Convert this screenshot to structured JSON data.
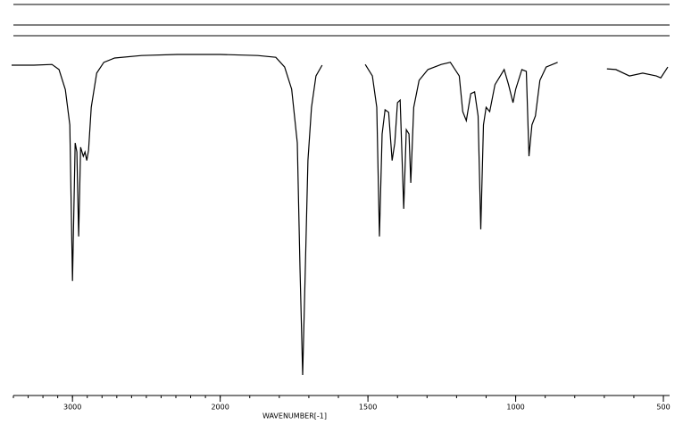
{
  "chart_data": {
    "type": "line",
    "x_label": "WAVENUMBER[-1]",
    "xlim": [
      3400,
      485
    ],
    "ylim": [
      0,
      100
    ],
    "scale_break": 2000,
    "scale_ratio": 2,
    "minor_tick_step": 100,
    "xticks": [
      3000,
      2000,
      1500,
      1000,
      500
    ],
    "series": [
      {
        "color": "#000000",
        "x": [
          3412,
          3261,
          3139,
          3091,
          3048,
          3018,
          3000,
          2982,
          2970,
          2958,
          2945,
          2927,
          2915,
          2903,
          2891,
          2873,
          2836,
          2788,
          2715,
          2533,
          2291,
          2000,
          1873,
          1812,
          1782,
          1758,
          1739,
          1730,
          1721,
          1712,
          1703,
          1691,
          1676,
          1655,
          1580,
          1509,
          1485,
          1470,
          1461,
          1452,
          1442,
          1430,
          1418,
          1409,
          1400,
          1391,
          1379,
          1370,
          1361,
          1355,
          1345,
          1327,
          1297,
          1252,
          1221,
          1191,
          1179,
          1167,
          1152,
          1139,
          1127,
          1118,
          1109,
          1100,
          1088,
          1070,
          1039,
          1024,
          1009,
          1000,
          979,
          964,
          955,
          945,
          933,
          918,
          897,
          858,
          780,
          691,
          661,
          615,
          570,
          524,
          509,
          485
        ],
        "values": [
          91.8,
          91.8,
          92,
          90.6,
          85,
          75.2,
          31.8,
          70.2,
          67.7,
          44.2,
          69,
          66.5,
          67.7,
          65.3,
          68.2,
          80.1,
          89.6,
          92.6,
          93.8,
          94.5,
          94.8,
          94.8,
          94.5,
          94,
          91.3,
          85.1,
          70.2,
          35.5,
          5.7,
          35.5,
          65.3,
          80.1,
          88.8,
          91.8,
          null,
          92,
          88.8,
          80.1,
          44.2,
          72.7,
          79.4,
          78.7,
          65.3,
          70.2,
          81.4,
          82.1,
          51.9,
          73.9,
          72.7,
          59.1,
          80.1,
          87.6,
          90.6,
          92,
          92.6,
          88.8,
          78.9,
          76.4,
          83.9,
          84.4,
          77.7,
          46.2,
          75.2,
          80.1,
          78.9,
          86.4,
          90.6,
          86.4,
          81.4,
          85.1,
          90.6,
          90.1,
          66.5,
          75.2,
          77.7,
          87.6,
          91.3,
          92.6,
          null,
          90.8,
          90.6,
          88.8,
          89.6,
          88.8,
          88.3,
          91.3
        ]
      }
    ]
  }
}
